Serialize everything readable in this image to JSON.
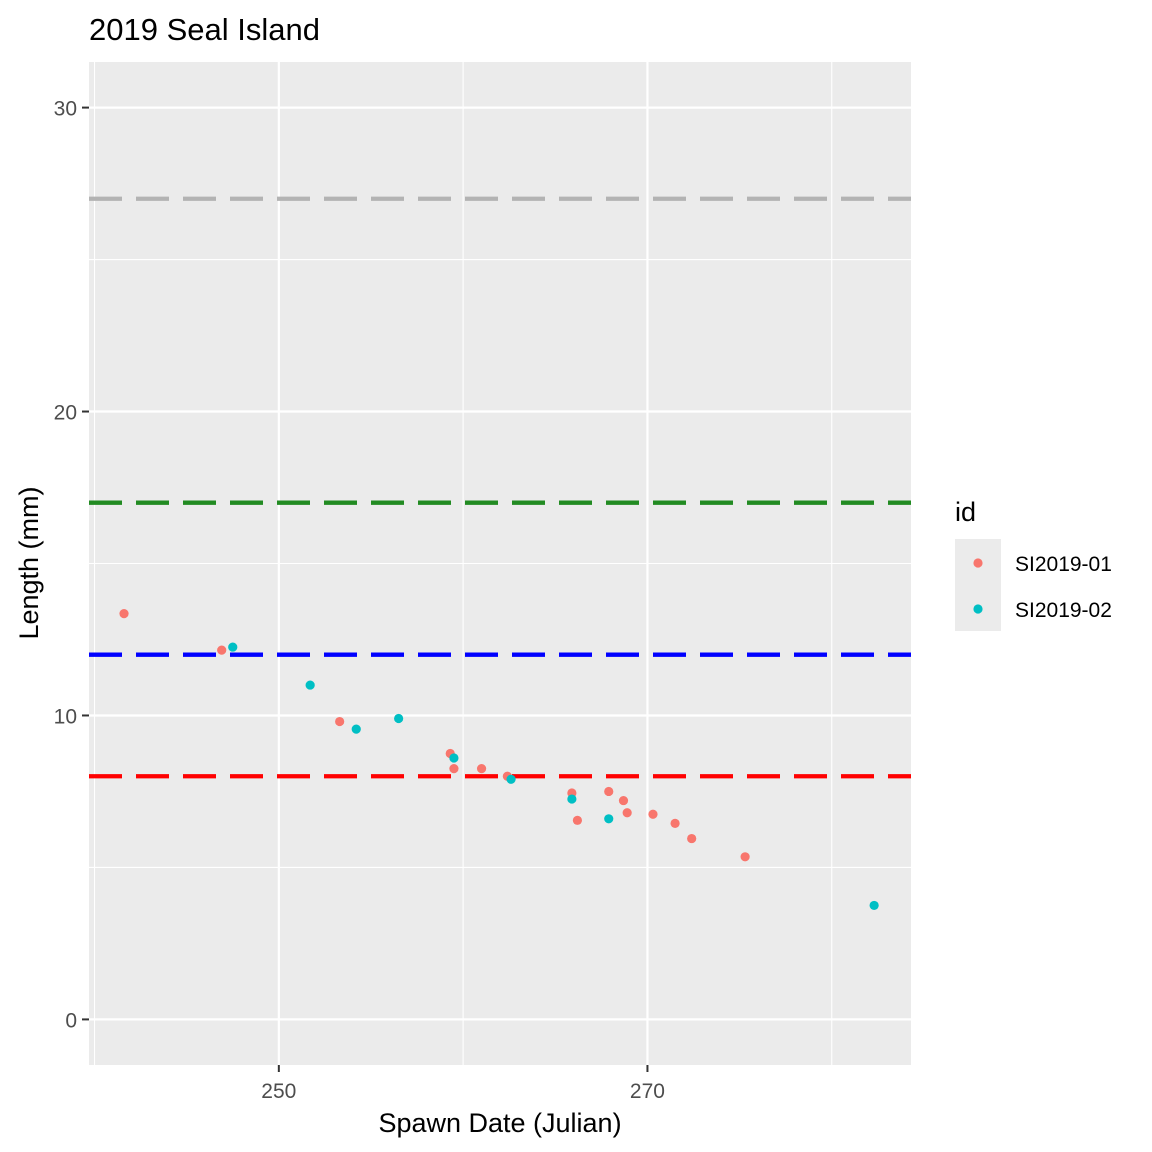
{
  "chart_data": {
    "type": "scatter",
    "title": "2019 Seal Island",
    "xlabel": "Spawn Date (Julian)",
    "ylabel": "Length (mm)",
    "xlim": [
      239.7,
      284.3
    ],
    "ylim": [
      -1.5,
      31.5
    ],
    "x_ticks": [
      250,
      270
    ],
    "y_ticks": [
      0,
      10,
      20,
      30
    ],
    "x_tick_labels": [
      "250",
      "270"
    ],
    "y_tick_labels": [
      "0",
      "10",
      "20",
      "30"
    ],
    "grid": true,
    "legend": {
      "title": "id",
      "placement": "right"
    },
    "reference_lines": [
      {
        "y": 27,
        "color": "#b3b3b3",
        "style": "dashed"
      },
      {
        "y": 17,
        "color": "#228b22",
        "style": "dashed"
      },
      {
        "y": 12,
        "color": "#0000ff",
        "style": "dashed"
      },
      {
        "y": 8,
        "color": "#ff0000",
        "style": "dashed"
      }
    ],
    "series": [
      {
        "name": "SI2019-01",
        "color": "#f8766d",
        "points": [
          {
            "x": 241.6,
            "y": 13.35
          },
          {
            "x": 246.9,
            "y": 12.15
          },
          {
            "x": 253.3,
            "y": 9.8
          },
          {
            "x": 259.3,
            "y": 8.75
          },
          {
            "x": 259.5,
            "y": 8.25
          },
          {
            "x": 261.0,
            "y": 8.25
          },
          {
            "x": 262.4,
            "y": 8.0
          },
          {
            "x": 265.9,
            "y": 7.45
          },
          {
            "x": 266.2,
            "y": 6.55
          },
          {
            "x": 267.9,
            "y": 7.5
          },
          {
            "x": 268.7,
            "y": 7.2
          },
          {
            "x": 268.9,
            "y": 6.8
          },
          {
            "x": 270.3,
            "y": 6.75
          },
          {
            "x": 271.5,
            "y": 6.45
          },
          {
            "x": 272.4,
            "y": 5.95
          },
          {
            "x": 275.3,
            "y": 5.35
          }
        ]
      },
      {
        "name": "SI2019-02",
        "color": "#00bfc4",
        "points": [
          {
            "x": 247.5,
            "y": 12.25
          },
          {
            "x": 251.7,
            "y": 11.0
          },
          {
            "x": 254.2,
            "y": 9.55
          },
          {
            "x": 256.5,
            "y": 9.9
          },
          {
            "x": 259.5,
            "y": 8.6
          },
          {
            "x": 262.6,
            "y": 7.9
          },
          {
            "x": 265.9,
            "y": 7.25
          },
          {
            "x": 267.9,
            "y": 6.6
          },
          {
            "x": 282.3,
            "y": 3.75
          }
        ]
      }
    ]
  }
}
